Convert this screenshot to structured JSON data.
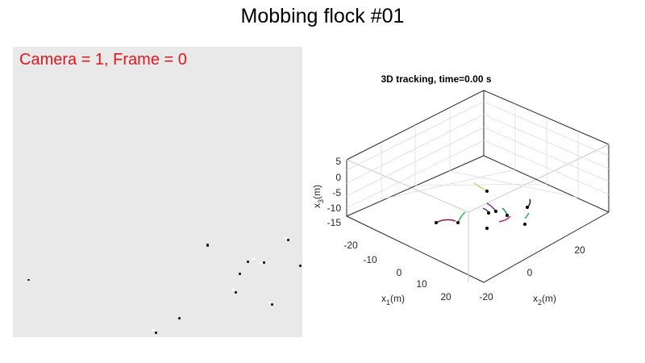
{
  "page": {
    "title": "Mobbing flock #01"
  },
  "camera": {
    "label": "Camera = 1, Frame = 0",
    "background": "#e9e9e9",
    "label_color": "#e8141c"
  },
  "plot": {
    "title": "3D tracking, time=0.00 s",
    "x1_label": "x",
    "x1_sub": "1",
    "x1_unit": "(m)",
    "x2_label": "x",
    "x2_sub": "2",
    "x2_unit": "(m)",
    "x3_label": "x",
    "x3_sub": "3",
    "x3_unit": "(m)",
    "x1_ticks": [
      "-20",
      "-10",
      "0",
      "10",
      "20"
    ],
    "x2_ticks": [
      "-20",
      "0",
      "20"
    ],
    "x3_ticks": [
      "5",
      "0",
      "-5",
      "-10",
      "-15"
    ],
    "grid": true,
    "track_colors": [
      "#8b1a3a",
      "#2db84a",
      "#c8d878",
      "#7b2c8c",
      "#b8326e",
      "#1f9e3f",
      "#4a2c90"
    ]
  }
}
